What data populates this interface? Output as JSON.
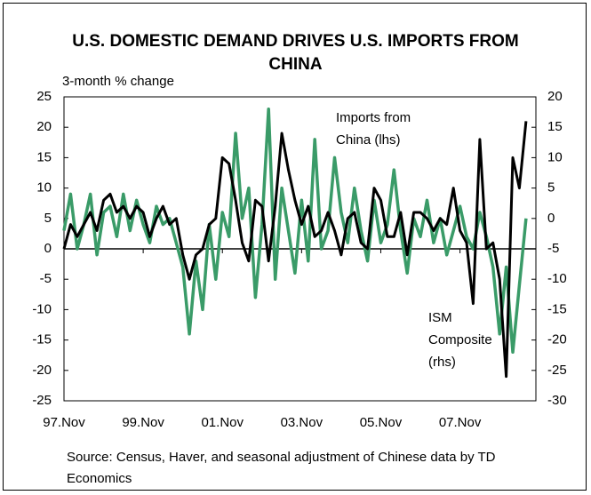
{
  "chart_data": {
    "type": "line",
    "title": "U.S. DOMESTIC DEMAND DRIVES U.S. IMPORTS FROM CHINA",
    "y_label": "3-month % change",
    "source": "Source: Census, Haver, and seasonal adjustment of Chinese data by TD Economics",
    "annotations": [
      [
        "Imports from",
        "China (lhs)"
      ],
      [
        "ISM",
        "Composite",
        "(rhs)"
      ]
    ],
    "categories": [
      "97.Nov",
      null,
      null,
      null,
      null,
      null,
      null,
      null,
      null,
      null,
      null,
      null,
      "99.Nov",
      null,
      null,
      null,
      null,
      null,
      null,
      null,
      null,
      null,
      null,
      null,
      "01.Nov",
      null,
      null,
      null,
      null,
      null,
      null,
      null,
      null,
      null,
      null,
      null,
      "03.Nov",
      null,
      null,
      null,
      null,
      null,
      null,
      null,
      null,
      null,
      null,
      null,
      "05.Nov",
      null,
      null,
      null,
      null,
      null,
      null,
      null,
      null,
      null,
      null,
      null,
      "07.Nov",
      null,
      null,
      null,
      null,
      null,
      null,
      null,
      null,
      null,
      null
    ],
    "series": [
      {
        "name": "Imports from China (lhs)",
        "color": "#3a9b68",
        "axis": "y",
        "values": [
          3,
          9,
          0,
          4,
          9,
          -1,
          6,
          7,
          2,
          9,
          3,
          8,
          4,
          1,
          7,
          4,
          5,
          1,
          -3,
          -14,
          -2,
          -10,
          4,
          -5,
          6,
          2,
          19,
          5,
          10,
          -8,
          4,
          23,
          -5,
          10,
          3,
          -4,
          8,
          -2,
          18,
          0,
          3,
          15,
          6,
          1,
          10,
          3,
          -2,
          8,
          1,
          4,
          13,
          3,
          -4,
          5,
          2,
          8,
          1,
          5,
          -1,
          3,
          7,
          2,
          0,
          6,
          2,
          -3,
          -14,
          -3,
          -17,
          -6,
          5
        ]
      },
      {
        "name": "ISM Composite (rhs)",
        "color": "#000000",
        "axis": "y2",
        "values": [
          -5,
          -1,
          -3,
          -1,
          1,
          -2,
          3,
          4,
          1,
          2,
          0,
          2,
          1,
          -3,
          0,
          2,
          -1,
          0,
          -6,
          -10,
          -6,
          -5,
          -1,
          0,
          10,
          9,
          3,
          -4,
          -7,
          3,
          2,
          -7,
          2,
          14,
          8,
          3,
          -1,
          2,
          -3,
          -2,
          1,
          -2,
          -6,
          0,
          1,
          -4,
          -5,
          5,
          3,
          -3,
          -3,
          1,
          -6,
          1,
          1,
          0,
          -2,
          0,
          -1,
          5,
          -2,
          -4,
          -14,
          13,
          -5,
          -4,
          -10,
          -26,
          10,
          5,
          16
        ]
      }
    ],
    "ylim": [
      -25,
      25
    ],
    "yticks": [
      -25,
      -20,
      -15,
      -10,
      -5,
      0,
      5,
      10,
      15,
      20,
      25
    ],
    "y2lim": [
      -30,
      20
    ],
    "y2ticks": [
      -30,
      -25,
      -20,
      -15,
      -10,
      -5,
      0,
      5,
      10,
      15,
      20
    ],
    "grid": false
  }
}
